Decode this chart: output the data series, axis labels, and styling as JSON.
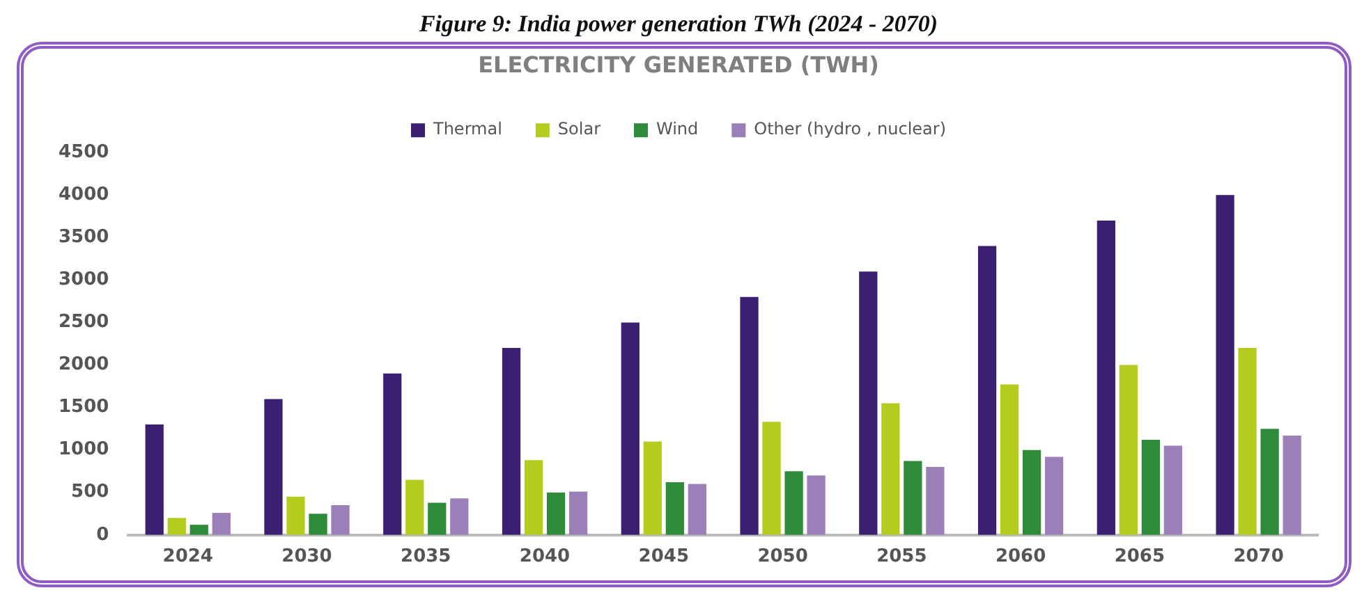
{
  "chart_data": {
    "type": "bar",
    "title": "Figure 9: India power generation TWh (2024 - 2070)",
    "subtitle": "ELECTRICITY GENERATED (TWH)",
    "categories": [
      "2024",
      "2030",
      "2035",
      "2040",
      "2045",
      "2050",
      "2055",
      "2060",
      "2065",
      "2070"
    ],
    "series": [
      {
        "name": "Thermal",
        "color": "#3b1f73",
        "values": [
          1300,
          1600,
          1900,
          2200,
          2500,
          2800,
          3100,
          3400,
          3700,
          4000
        ]
      },
      {
        "name": "Solar",
        "color": "#b5cc1f",
        "values": [
          200,
          450,
          650,
          880,
          1100,
          1330,
          1550,
          1770,
          2000,
          2200
        ]
      },
      {
        "name": "Wind",
        "color": "#2e8b3a",
        "values": [
          120,
          250,
          380,
          500,
          620,
          750,
          870,
          1000,
          1120,
          1250
        ]
      },
      {
        "name": "Other (hydro , nuclear)",
        "color": "#9b7fb8",
        "values": [
          260,
          350,
          430,
          510,
          600,
          700,
          800,
          920,
          1050,
          1170
        ]
      }
    ],
    "ylim": [
      0,
      4500
    ],
    "yticks": [
      0,
      500,
      1000,
      1500,
      2000,
      2500,
      3000,
      3500,
      4000,
      4500
    ],
    "grid": false,
    "legend": "top"
  }
}
